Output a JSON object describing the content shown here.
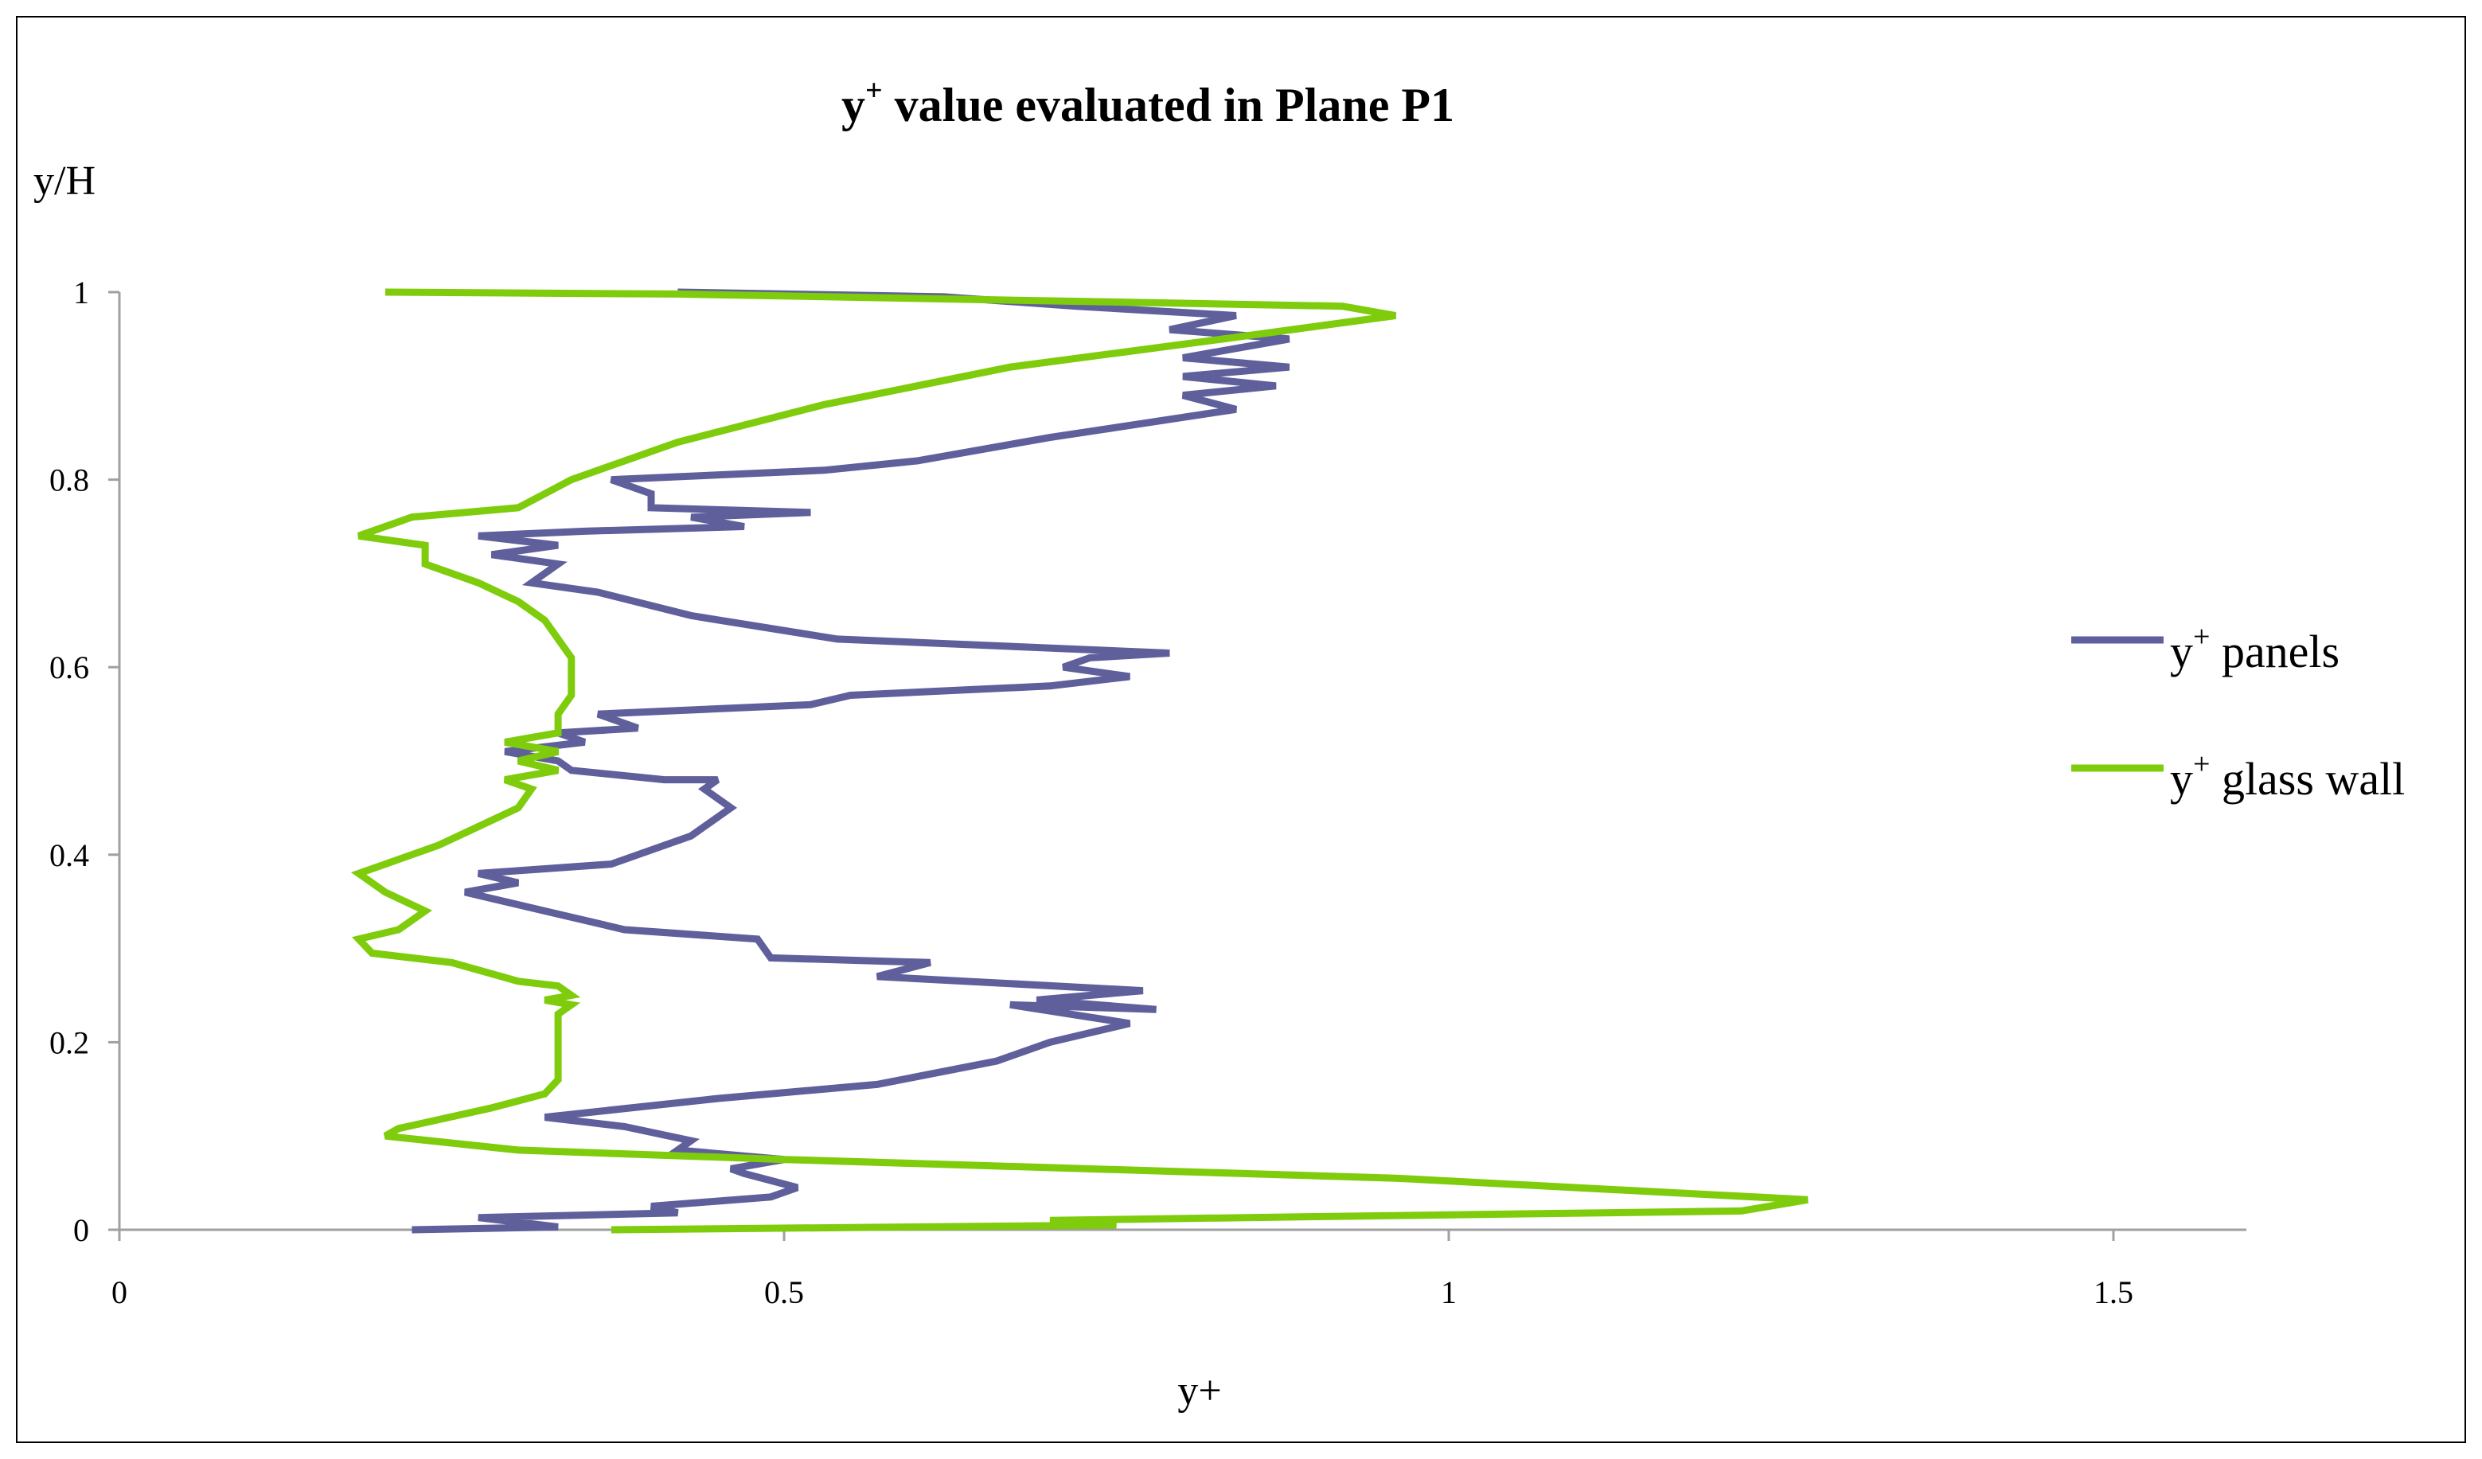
{
  "chart_data": {
    "type": "line",
    "title_main": "y",
    "title_sup": "+",
    "title_rest": " value evaluated in Plane P1",
    "title": "y+ value evaluated in Plane P1",
    "xlabel": "y+",
    "ylabel": "y/H",
    "xlim": [
      0,
      1.6
    ],
    "ylim": [
      0,
      1
    ],
    "xticks": [
      0,
      0.5,
      1,
      1.5
    ],
    "yticks": [
      0,
      0.2,
      0.4,
      0.6,
      0.8,
      1
    ],
    "xtick_labels": [
      "0",
      "0.5",
      "1",
      "1.5"
    ],
    "ytick_labels": [
      "0",
      "0.2",
      "0.4",
      "0.6",
      "0.8",
      "1"
    ],
    "grid": false,
    "legend_position": "right",
    "series": [
      {
        "name": "y+ panels",
        "legend_main": "y",
        "legend_sup": "+",
        "legend_rest": " panels",
        "color": "#5F5F9C",
        "points": [
          [
            0.22,
            0.0
          ],
          [
            0.33,
            0.003
          ],
          [
            0.27,
            0.013
          ],
          [
            0.42,
            0.018
          ],
          [
            0.4,
            0.025
          ],
          [
            0.49,
            0.035
          ],
          [
            0.51,
            0.045
          ],
          [
            0.47,
            0.06
          ],
          [
            0.46,
            0.065
          ],
          [
            0.5,
            0.075
          ],
          [
            0.42,
            0.085
          ],
          [
            0.43,
            0.095
          ],
          [
            0.38,
            0.11
          ],
          [
            0.32,
            0.12
          ],
          [
            0.45,
            0.14
          ],
          [
            0.57,
            0.155
          ],
          [
            0.66,
            0.18
          ],
          [
            0.7,
            0.2
          ],
          [
            0.76,
            0.22
          ],
          [
            0.67,
            0.24
          ],
          [
            0.78,
            0.235
          ],
          [
            0.69,
            0.245
          ],
          [
            0.77,
            0.255
          ],
          [
            0.57,
            0.27
          ],
          [
            0.61,
            0.285
          ],
          [
            0.49,
            0.29
          ],
          [
            0.48,
            0.31
          ],
          [
            0.38,
            0.32
          ],
          [
            0.32,
            0.34
          ],
          [
            0.26,
            0.36
          ],
          [
            0.3,
            0.37
          ],
          [
            0.27,
            0.38
          ],
          [
            0.37,
            0.39
          ],
          [
            0.43,
            0.42
          ],
          [
            0.46,
            0.45
          ],
          [
            0.44,
            0.47
          ],
          [
            0.45,
            0.48
          ],
          [
            0.41,
            0.48
          ],
          [
            0.34,
            0.49
          ],
          [
            0.33,
            0.5
          ],
          [
            0.29,
            0.51
          ],
          [
            0.35,
            0.52
          ],
          [
            0.33,
            0.53
          ],
          [
            0.39,
            0.535
          ],
          [
            0.36,
            0.55
          ],
          [
            0.52,
            0.56
          ],
          [
            0.55,
            0.57
          ],
          [
            0.7,
            0.58
          ],
          [
            0.76,
            0.59
          ],
          [
            0.71,
            0.6
          ],
          [
            0.73,
            0.61
          ],
          [
            0.79,
            0.615
          ],
          [
            0.54,
            0.63
          ],
          [
            0.43,
            0.655
          ],
          [
            0.36,
            0.68
          ],
          [
            0.31,
            0.69
          ],
          [
            0.33,
            0.71
          ],
          [
            0.28,
            0.72
          ],
          [
            0.33,
            0.73
          ],
          [
            0.27,
            0.74
          ],
          [
            0.35,
            0.745
          ],
          [
            0.47,
            0.75
          ],
          [
            0.43,
            0.76
          ],
          [
            0.52,
            0.765
          ],
          [
            0.4,
            0.77
          ],
          [
            0.4,
            0.785
          ],
          [
            0.37,
            0.8
          ],
          [
            0.53,
            0.81
          ],
          [
            0.6,
            0.82
          ],
          [
            0.7,
            0.845
          ],
          [
            0.77,
            0.86
          ],
          [
            0.84,
            0.875
          ],
          [
            0.8,
            0.89
          ],
          [
            0.87,
            0.9
          ],
          [
            0.8,
            0.91
          ],
          [
            0.88,
            0.92
          ],
          [
            0.8,
            0.93
          ],
          [
            0.88,
            0.95
          ],
          [
            0.79,
            0.96
          ],
          [
            0.84,
            0.975
          ],
          [
            0.72,
            0.985
          ],
          [
            0.62,
            0.995
          ],
          [
            0.42,
            1.0
          ]
        ]
      },
      {
        "name": "y+ glass wall",
        "legend_main": "y",
        "legend_sup": "+",
        "legend_rest": " glass wall",
        "color": "#7ECC0B",
        "points": [
          [
            0.37,
            0.0
          ],
          [
            0.75,
            0.005
          ],
          [
            0.7,
            0.01
          ],
          [
            0.9,
            0.014
          ],
          [
            1.22,
            0.02
          ],
          [
            1.27,
            0.032
          ],
          [
            0.96,
            0.055
          ],
          [
            0.5,
            0.075
          ],
          [
            0.3,
            0.085
          ],
          [
            0.2,
            0.1
          ],
          [
            0.21,
            0.108
          ],
          [
            0.28,
            0.13
          ],
          [
            0.32,
            0.145
          ],
          [
            0.33,
            0.16
          ],
          [
            0.33,
            0.2
          ],
          [
            0.33,
            0.23
          ],
          [
            0.34,
            0.24
          ],
          [
            0.32,
            0.245
          ],
          [
            0.34,
            0.25
          ],
          [
            0.33,
            0.26
          ],
          [
            0.3,
            0.265
          ],
          [
            0.25,
            0.285
          ],
          [
            0.19,
            0.295
          ],
          [
            0.18,
            0.31
          ],
          [
            0.21,
            0.32
          ],
          [
            0.23,
            0.34
          ],
          [
            0.2,
            0.36
          ],
          [
            0.18,
            0.38
          ],
          [
            0.2,
            0.39
          ],
          [
            0.24,
            0.41
          ],
          [
            0.27,
            0.43
          ],
          [
            0.3,
            0.45
          ],
          [
            0.31,
            0.47
          ],
          [
            0.29,
            0.48
          ],
          [
            0.33,
            0.49
          ],
          [
            0.3,
            0.5
          ],
          [
            0.33,
            0.51
          ],
          [
            0.29,
            0.52
          ],
          [
            0.33,
            0.53
          ],
          [
            0.33,
            0.55
          ],
          [
            0.34,
            0.57
          ],
          [
            0.34,
            0.61
          ],
          [
            0.32,
            0.65
          ],
          [
            0.3,
            0.67
          ],
          [
            0.27,
            0.69
          ],
          [
            0.23,
            0.71
          ],
          [
            0.23,
            0.73
          ],
          [
            0.18,
            0.74
          ],
          [
            0.22,
            0.76
          ],
          [
            0.3,
            0.77
          ],
          [
            0.32,
            0.785
          ],
          [
            0.34,
            0.8
          ],
          [
            0.42,
            0.84
          ],
          [
            0.53,
            0.88
          ],
          [
            0.67,
            0.92
          ],
          [
            0.83,
            0.95
          ],
          [
            0.96,
            0.975
          ],
          [
            0.92,
            0.985
          ],
          [
            0.42,
            0.998
          ],
          [
            0.2,
            1.0
          ]
        ]
      }
    ]
  }
}
